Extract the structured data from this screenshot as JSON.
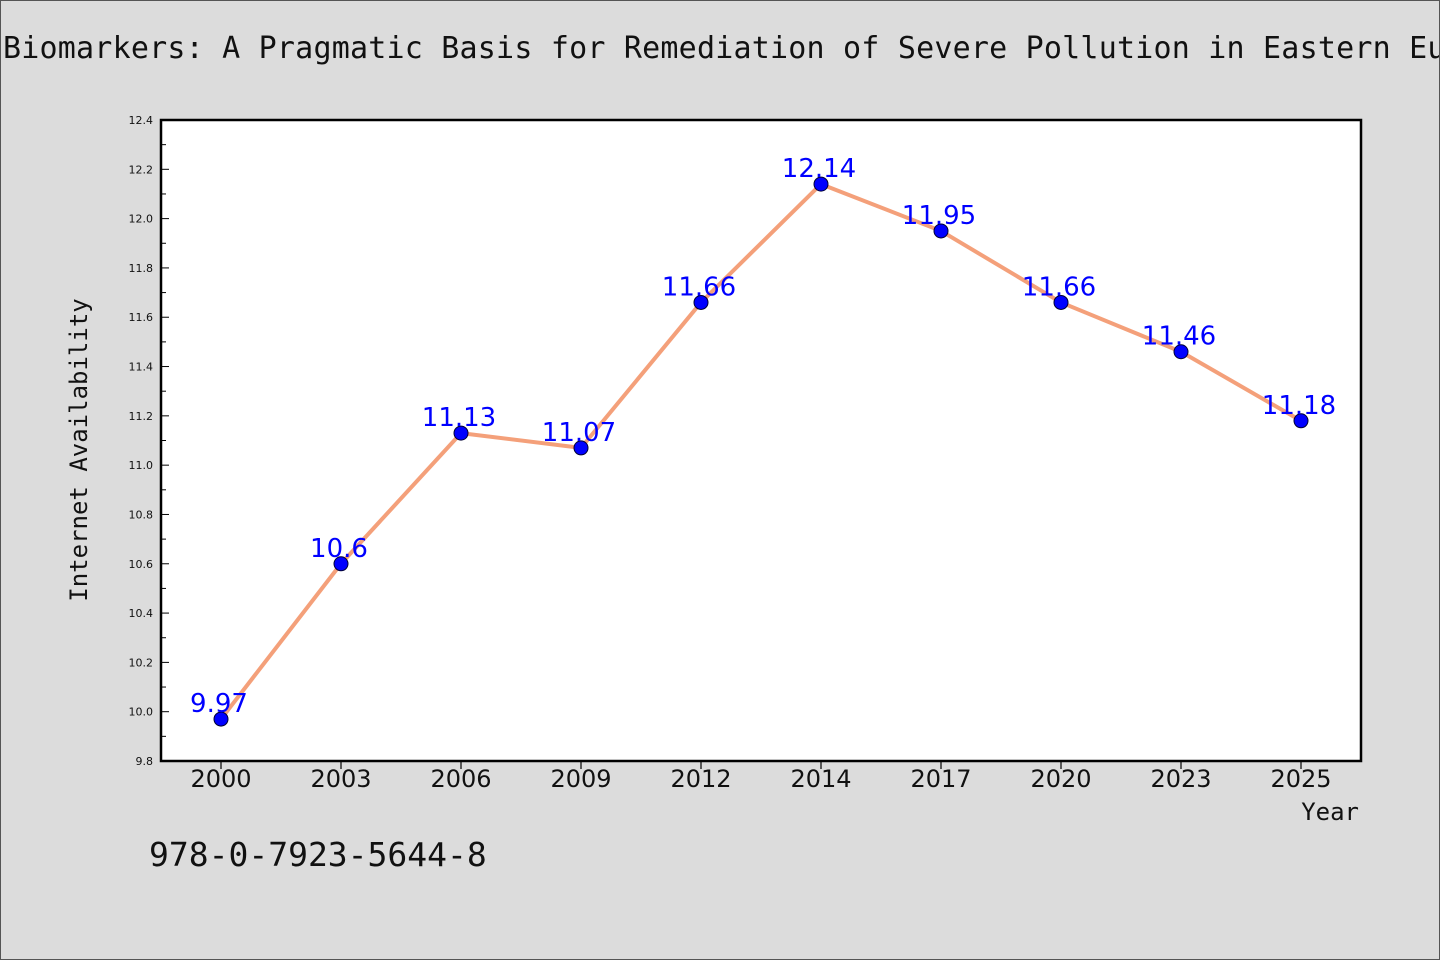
{
  "chart_data": {
    "type": "line",
    "title": "Biomarkers: A Pragmatic Basis for Remediation of Severe Pollution in Eastern Eur",
    "xlabel": "Year",
    "ylabel": "Internet Availability",
    "categories": [
      "2000",
      "2003",
      "2006",
      "2009",
      "2012",
      "2014",
      "2017",
      "2020",
      "2023",
      "2025"
    ],
    "series": [
      {
        "values": [
          9.97,
          10.6,
          11.13,
          11.07,
          11.66,
          12.14,
          11.95,
          11.66,
          11.46,
          11.18
        ],
        "data_labels": [
          "9.97",
          "10.6",
          "11.13",
          "11.07",
          "11.66",
          "12.14",
          "11.95",
          "11.66",
          "11.46",
          "11.18"
        ]
      }
    ],
    "ylim": [
      9.8,
      12.4
    ],
    "yticks": [
      "9.8",
      "10.0",
      "10.2",
      "10.4",
      "10.6",
      "10.8",
      "11.0",
      "11.2",
      "11.4",
      "11.6",
      "11.8",
      "12.0",
      "12.2",
      "12.4"
    ],
    "grid": false,
    "legend": "none",
    "colors": {
      "line": "#f4a07a",
      "marker": "#0000ff",
      "data_label": "#0000ff",
      "background": "#dcdcdc",
      "plot_area": "#ffffff"
    }
  },
  "footer": {
    "code": "978-0-7923-5644-8"
  }
}
